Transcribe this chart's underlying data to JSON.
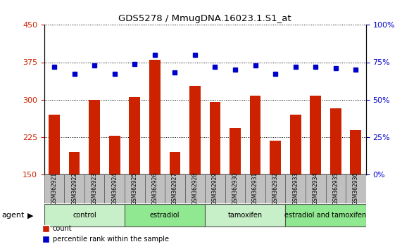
{
  "title": "GDS5278 / MmugDNA.16023.1.S1_at",
  "samples": [
    "GSM362921",
    "GSM362922",
    "GSM362923",
    "GSM362924",
    "GSM362925",
    "GSM362926",
    "GSM362927",
    "GSM362928",
    "GSM362929",
    "GSM362930",
    "GSM362931",
    "GSM362932",
    "GSM362933",
    "GSM362934",
    "GSM362935",
    "GSM362936"
  ],
  "counts": [
    270,
    195,
    300,
    228,
    305,
    380,
    195,
    328,
    295,
    243,
    308,
    218,
    270,
    308,
    282,
    238
  ],
  "percentiles": [
    72,
    67,
    73,
    67,
    74,
    80,
    68,
    80,
    72,
    70,
    73,
    67,
    72,
    72,
    71,
    70
  ],
  "groups": [
    {
      "label": "control",
      "start": 0,
      "end": 4,
      "color": "#c8f0c8"
    },
    {
      "label": "estradiol",
      "start": 4,
      "end": 8,
      "color": "#90e890"
    },
    {
      "label": "tamoxifen",
      "start": 8,
      "end": 12,
      "color": "#c8f0c8"
    },
    {
      "label": "estradiol and tamoxifen",
      "start": 12,
      "end": 16,
      "color": "#90e890"
    }
  ],
  "ylim_left": [
    150,
    450
  ],
  "ylim_right": [
    0,
    100
  ],
  "yticks_left": [
    150,
    225,
    300,
    375,
    450
  ],
  "yticks_right": [
    0,
    25,
    50,
    75,
    100
  ],
  "bar_color": "#cc2200",
  "dot_color": "#0000cc",
  "bg_color": "#ffffff",
  "grid_color": "#000000",
  "tick_area_bg": "#c0c0c0",
  "group_border_color": "#555555",
  "agent_label": "agent"
}
